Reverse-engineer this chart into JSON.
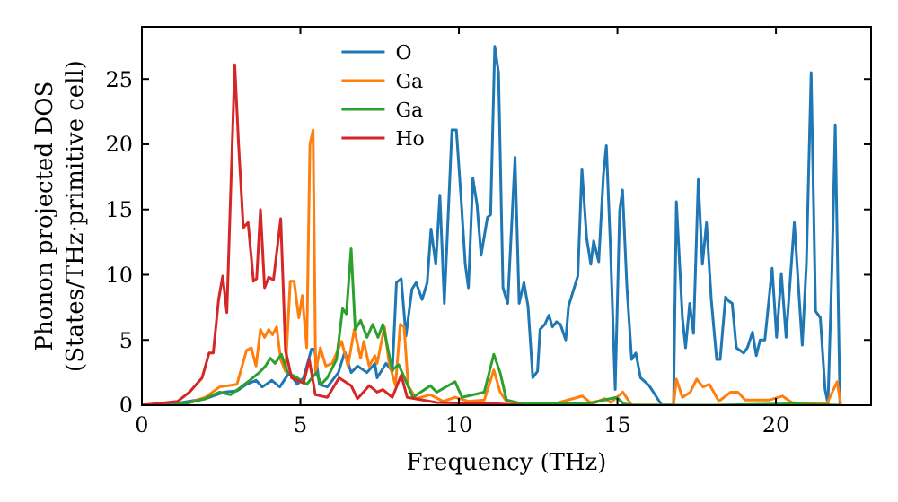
{
  "chart_data": {
    "type": "line",
    "xlabel": "Frequency (THz)",
    "ylabel": "Phonon projected DOS\n(States/THz·primitive cell)",
    "xlim": [
      0,
      23
    ],
    "ylim": [
      0,
      29
    ],
    "xticks": [
      0,
      5,
      10,
      15,
      20
    ],
    "yticks": [
      0,
      5,
      10,
      15,
      20,
      25
    ],
    "grid": false,
    "legend": "top",
    "marker": "none",
    "line_style": "solid",
    "series": [
      {
        "name": "O",
        "color": "#1f77b4",
        "x": [
          0,
          1,
          2,
          2.6,
          3,
          3.3,
          3.6,
          3.8,
          4.1,
          4.35,
          4.65,
          4.9,
          5.1,
          5.35,
          5.45,
          5.6,
          5.85,
          6.2,
          6.4,
          6.6,
          6.8,
          7.1,
          7.35,
          7.42,
          7.7,
          7.9,
          8.03,
          8.18,
          8.33,
          8.52,
          8.65,
          8.84,
          9.0,
          9.12,
          9.27,
          9.4,
          9.54,
          9.78,
          9.92,
          10.07,
          10.2,
          10.3,
          10.44,
          10.57,
          10.7,
          10.9,
          11.0,
          11.13,
          11.25,
          11.39,
          11.54,
          11.77,
          11.9,
          12.05,
          12.18,
          12.33,
          12.48,
          12.56,
          12.71,
          12.84,
          12.95,
          13.08,
          13.2,
          13.37,
          13.46,
          13.75,
          13.88,
          14.03,
          14.16,
          14.25,
          14.41,
          14.56,
          14.65,
          14.78,
          14.93,
          15.07,
          15.16,
          15.3,
          15.45,
          15.58,
          15.73,
          16.0,
          16.4,
          16.77,
          16.86,
          17.05,
          17.15,
          17.28,
          17.4,
          17.55,
          17.68,
          17.81,
          17.96,
          18.13,
          18.24,
          18.41,
          18.5,
          18.62,
          18.75,
          18.98,
          19.1,
          19.26,
          19.38,
          19.5,
          19.65,
          19.88,
          20.02,
          20.17,
          20.32,
          20.58,
          20.83,
          20.96,
          21.11,
          21.25,
          21.4,
          21.55,
          21.64,
          21.77,
          21.87,
          22.02
        ],
        "values": [
          0,
          0.1,
          0.5,
          1.0,
          1.1,
          1.6,
          1.9,
          1.4,
          1.9,
          1.4,
          2.5,
          1.6,
          2.1,
          4.3,
          4.3,
          1.6,
          1.4,
          2.5,
          4.1,
          2.5,
          3.0,
          2.5,
          3.2,
          2.1,
          3.2,
          2.6,
          9.4,
          9.7,
          5.3,
          8.9,
          9.4,
          8.1,
          9.4,
          13.5,
          10.8,
          16.1,
          7.8,
          21.1,
          21.1,
          15.8,
          10.8,
          9.0,
          17.4,
          15.4,
          11.5,
          14.4,
          14.6,
          27.5,
          25.5,
          9.0,
          7.8,
          19.0,
          7.8,
          9.4,
          7.6,
          2.1,
          2.6,
          5.8,
          6.2,
          6.9,
          6.0,
          6.4,
          6.2,
          5.0,
          7.6,
          9.9,
          18.1,
          12.8,
          10.8,
          12.6,
          11.0,
          17.7,
          19.9,
          12.1,
          1.2,
          14.9,
          16.5,
          9.0,
          3.5,
          4.0,
          2.1,
          1.5,
          0,
          0,
          15.6,
          6.7,
          4.4,
          7.8,
          5.5,
          17.3,
          10.8,
          14.0,
          8.1,
          3.5,
          3.5,
          8.3,
          8.0,
          7.8,
          4.4,
          4.0,
          4.4,
          5.6,
          3.8,
          5.0,
          5.0,
          10.5,
          5.2,
          10.1,
          5.2,
          14.0,
          4.6,
          10.8,
          25.5,
          7.2,
          6.7,
          1.2,
          0.1,
          10.8,
          21.5,
          0
        ]
      },
      {
        "name": "Ga",
        "color": "#ff7f0e",
        "x": [
          0,
          1,
          1.5,
          2.0,
          2.45,
          3.0,
          3.3,
          3.45,
          3.6,
          3.74,
          3.87,
          4.0,
          4.12,
          4.25,
          4.38,
          4.53,
          4.68,
          4.8,
          4.95,
          5.06,
          5.2,
          5.3,
          5.4,
          5.48,
          5.63,
          5.8,
          6.0,
          6.3,
          6.5,
          6.7,
          6.9,
          7.0,
          7.17,
          7.35,
          7.42,
          7.65,
          7.8,
          8.0,
          8.15,
          8.27,
          8.4,
          8.65,
          9.1,
          9.5,
          9.88,
          10.3,
          10.8,
          11.1,
          11.3,
          11.5,
          12.0,
          13.0,
          13.9,
          14.2,
          14.6,
          14.79,
          15.17,
          15.45,
          16.0,
          16.77,
          16.86,
          17.05,
          17.3,
          17.5,
          17.7,
          17.9,
          18.2,
          18.57,
          18.8,
          19.03,
          19.8,
          20.2,
          20.5,
          21.0,
          21.6,
          21.93,
          22.05
        ],
        "values": [
          0,
          0,
          0.2,
          0.6,
          1.4,
          1.6,
          4.2,
          4.4,
          3.0,
          5.8,
          5.2,
          5.8,
          5.4,
          6.0,
          3.5,
          2.6,
          9.5,
          9.5,
          6.7,
          8.4,
          4.4,
          20.0,
          21.1,
          2.6,
          4.4,
          3.0,
          3.2,
          4.9,
          3.0,
          5.8,
          3.6,
          4.9,
          3.0,
          3.8,
          3.2,
          6.0,
          3.2,
          1.5,
          6.2,
          6.0,
          1.5,
          0.5,
          0.8,
          0.3,
          0.6,
          0.3,
          0.4,
          2.7,
          1.0,
          0.3,
          0.1,
          0.1,
          0.7,
          0.1,
          0.5,
          0.2,
          1.0,
          0,
          0,
          0,
          2.0,
          0.6,
          1.0,
          2.0,
          1.4,
          1.6,
          0.3,
          1.0,
          1.0,
          0.4,
          0.4,
          0.7,
          0.2,
          0.1,
          0.1,
          1.8,
          0
        ]
      },
      {
        "name": "Ga",
        "color": "#2ca02c",
        "x": [
          0,
          1,
          1.5,
          2.0,
          2.45,
          2.8,
          3.4,
          3.7,
          3.9,
          4.05,
          4.2,
          4.4,
          4.6,
          4.9,
          5.2,
          5.5,
          5.65,
          5.85,
          6.14,
          6.33,
          6.45,
          6.6,
          6.73,
          6.9,
          7.1,
          7.28,
          7.45,
          7.6,
          7.9,
          8.1,
          8.3,
          8.55,
          9.1,
          9.3,
          9.88,
          10.1,
          10.8,
          11.1,
          11.3,
          11.5,
          12.0,
          13.0,
          14.0,
          14.98,
          15.2,
          15.5,
          16.5,
          18.0,
          20.5,
          22.0
        ],
        "values": [
          0,
          0,
          0.2,
          0.5,
          1.0,
          0.8,
          1.9,
          2.5,
          3.0,
          3.6,
          3.2,
          3.9,
          2.5,
          2.1,
          1.6,
          2.5,
          1.6,
          2.1,
          3.5,
          7.4,
          7.0,
          12.0,
          5.8,
          6.5,
          5.2,
          6.2,
          5.2,
          6.2,
          2.7,
          3.1,
          2.0,
          0.6,
          1.5,
          1.0,
          1.8,
          0.6,
          1.0,
          3.9,
          2.5,
          0.4,
          0.1,
          0.1,
          0.1,
          0.6,
          0.1,
          0,
          0,
          0,
          0.1,
          0
        ]
      },
      {
        "name": "Ho",
        "color": "#d62728",
        "x": [
          0,
          1.13,
          1.5,
          1.9,
          2.12,
          2.25,
          2.42,
          2.55,
          2.68,
          2.93,
          3.05,
          3.2,
          3.35,
          3.52,
          3.62,
          3.74,
          3.87,
          4.0,
          4.15,
          4.38,
          4.53,
          4.72,
          5.1,
          5.28,
          5.47,
          5.85,
          6.22,
          6.6,
          6.8,
          7.17,
          7.42,
          7.6,
          7.9,
          8.18,
          8.37,
          9.3,
          11.2,
          12.0
        ],
        "values": [
          0,
          0.3,
          1.0,
          2.1,
          4.0,
          4.0,
          8.1,
          9.9,
          7.1,
          26.1,
          20.0,
          13.6,
          14.0,
          9.5,
          9.7,
          15.0,
          9.0,
          9.8,
          9.6,
          14.3,
          4.2,
          2.1,
          1.7,
          3.5,
          0.8,
          0.6,
          2.1,
          1.5,
          0.5,
          1.5,
          1.0,
          1.2,
          0.6,
          2.3,
          0.6,
          0.2,
          0.1,
          0
        ]
      }
    ]
  }
}
